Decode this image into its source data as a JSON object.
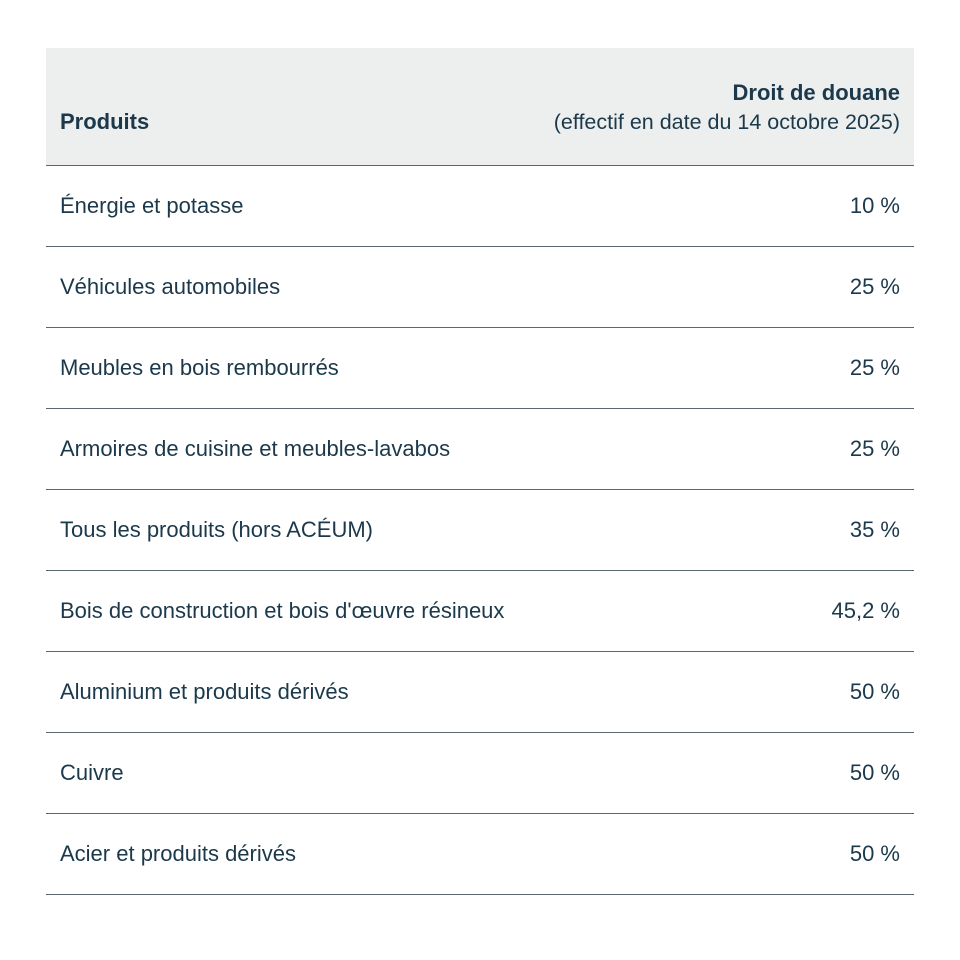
{
  "table": {
    "header": {
      "products_label": "Produits",
      "tariff_label": "Droit de douane",
      "tariff_sublabel": "(effectif en date du 14 octobre 2025)"
    },
    "rows": [
      {
        "product": "Énergie et potasse",
        "tariff": "10 %"
      },
      {
        "product": "Véhicules automobiles",
        "tariff": "25 %"
      },
      {
        "product": "Meubles en bois rembourrés",
        "tariff": "25 %"
      },
      {
        "product": "Armoires de cuisine et meubles-lavabos",
        "tariff": "25 %"
      },
      {
        "product": "Tous les produits (hors ACÉUM)",
        "tariff": "35 %"
      },
      {
        "product": "Bois de construction et bois d'œuvre résineux",
        "tariff": "45,2 %"
      },
      {
        "product": "Aluminium et produits dérivés",
        "tariff": "50 %"
      },
      {
        "product": "Cuivre",
        "tariff": "50 %"
      },
      {
        "product": "Acier et produits dérivés",
        "tariff": "50 %"
      }
    ]
  },
  "chart_data": {
    "type": "table",
    "title": "Droit de douane (effectif en date du 14 octobre 2025)",
    "columns": [
      "Produits",
      "Droit de douane (effectif en date du 14 octobre 2025)"
    ],
    "rows": [
      [
        "Énergie et potasse",
        "10 %"
      ],
      [
        "Véhicules automobiles",
        "25 %"
      ],
      [
        "Meubles en bois rembourrés",
        "25 %"
      ],
      [
        "Armoires de cuisine et meubles-lavabos",
        "25 %"
      ],
      [
        "Tous les produits (hors ACÉUM)",
        "35 %"
      ],
      [
        "Bois de construction et bois d'œuvre résineux",
        "45,2 %"
      ],
      [
        "Aluminium et produits dérivés",
        "50 %"
      ],
      [
        "Cuivre",
        "50 %"
      ],
      [
        "Acier et produits dérivés",
        "50 %"
      ]
    ],
    "values_percent": [
      10,
      25,
      25,
      25,
      35,
      45.2,
      50,
      50,
      50
    ]
  },
  "colors": {
    "background": "#ffffff",
    "header_bg": "#edefef",
    "text": "#1b394b",
    "divider": "#5a676e"
  }
}
